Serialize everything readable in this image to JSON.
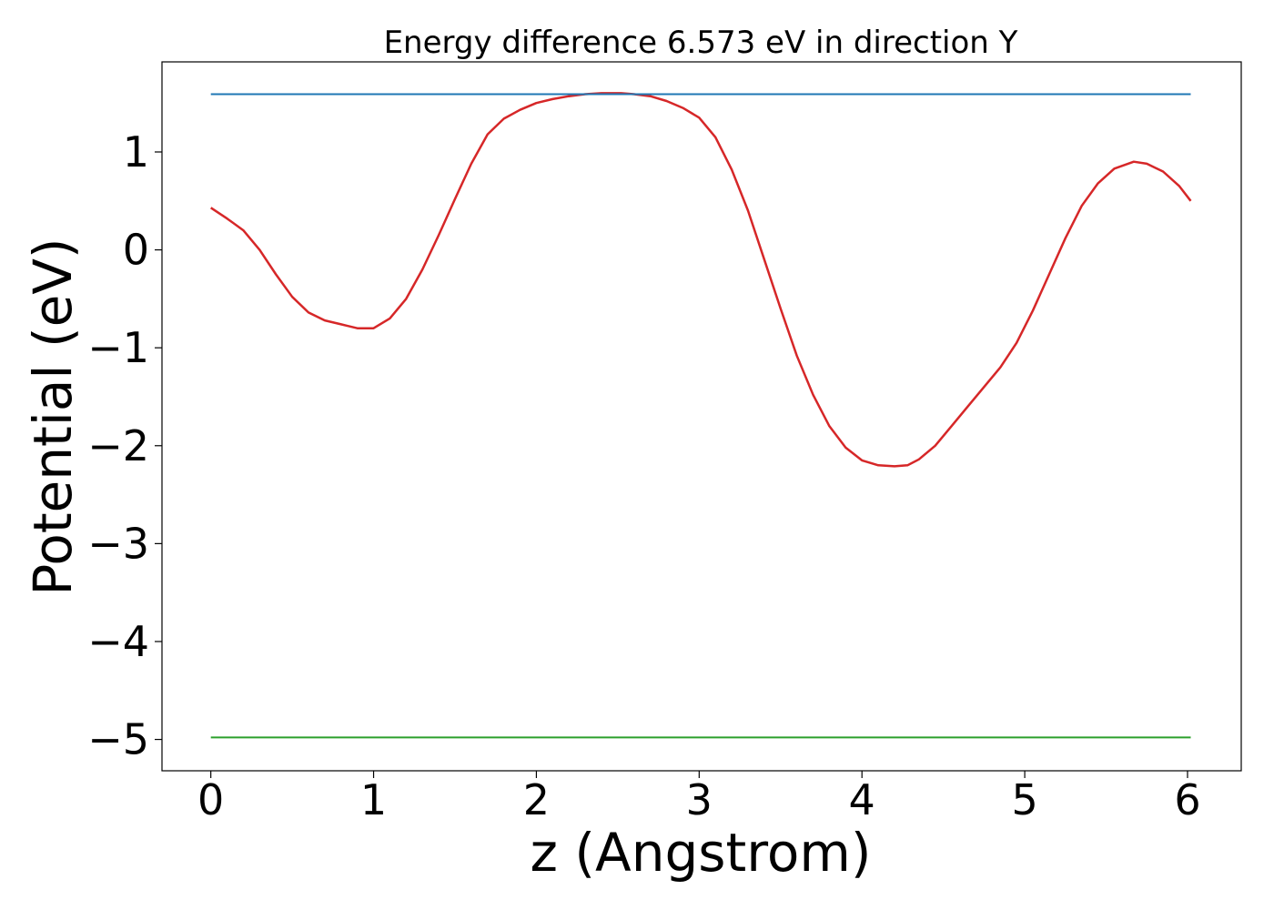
{
  "chart_data": {
    "type": "line",
    "title": "Energy difference 6.573 eV in direction Y",
    "xlabel": "z (Angstrom)",
    "ylabel": "Potential (eV)",
    "xlim": [
      -0.3,
      6.33
    ],
    "ylim": [
      -5.32,
      1.92
    ],
    "xticks": [
      0,
      1,
      2,
      3,
      4,
      5,
      6
    ],
    "yticks": [
      1,
      0,
      -1,
      -2,
      -3,
      -4,
      -5
    ],
    "grid": false,
    "legend": "none",
    "series": [
      {
        "color": "#d62728",
        "x": [
          0.0,
          0.1,
          0.2,
          0.3,
          0.4,
          0.5,
          0.6,
          0.7,
          0.8,
          0.9,
          1.0,
          1.1,
          1.2,
          1.3,
          1.4,
          1.5,
          1.6,
          1.7,
          1.8,
          1.9,
          2.0,
          2.1,
          2.2,
          2.3,
          2.4,
          2.52,
          2.6,
          2.7,
          2.8,
          2.9,
          3.0,
          3.1,
          3.2,
          3.3,
          3.4,
          3.5,
          3.6,
          3.7,
          3.8,
          3.9,
          4.0,
          4.1,
          4.2,
          4.28,
          4.35,
          4.45,
          4.55,
          4.65,
          4.75,
          4.85,
          4.95,
          5.05,
          5.15,
          5.25,
          5.35,
          5.45,
          5.55,
          5.67,
          5.75,
          5.85,
          5.95,
          6.02
        ],
        "y": [
          0.43,
          0.32,
          0.2,
          0.0,
          -0.25,
          -0.48,
          -0.64,
          -0.72,
          -0.76,
          -0.8,
          -0.8,
          -0.7,
          -0.5,
          -0.2,
          0.15,
          0.52,
          0.88,
          1.18,
          1.34,
          1.43,
          1.5,
          1.54,
          1.57,
          1.59,
          1.6,
          1.6,
          1.59,
          1.57,
          1.52,
          1.45,
          1.35,
          1.15,
          0.82,
          0.4,
          -0.1,
          -0.6,
          -1.08,
          -1.48,
          -1.8,
          -2.02,
          -2.15,
          -2.2,
          -2.21,
          -2.2,
          -2.14,
          -2.0,
          -1.8,
          -1.6,
          -1.4,
          -1.2,
          -0.95,
          -0.62,
          -0.25,
          0.12,
          0.45,
          0.68,
          0.83,
          0.9,
          0.88,
          0.8,
          0.65,
          0.5
        ]
      },
      {
        "color": "#1f77b4",
        "x": [
          0.0,
          6.02
        ],
        "y": [
          1.59,
          1.59
        ]
      },
      {
        "color": "#2ca02c",
        "x": [
          0.0,
          6.02
        ],
        "y": [
          -4.98,
          -4.98
        ]
      }
    ]
  }
}
